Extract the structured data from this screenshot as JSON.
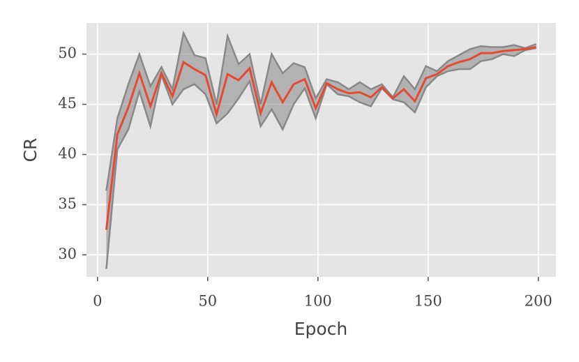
{
  "chart_data": {
    "type": "line",
    "x_label": "Epoch",
    "y_label": "CR",
    "x": [
      4,
      9,
      14,
      19,
      24,
      29,
      34,
      39,
      44,
      49,
      54,
      59,
      64,
      69,
      74,
      79,
      84,
      89,
      94,
      99,
      104,
      109,
      114,
      119,
      124,
      129,
      134,
      139,
      144,
      149,
      154,
      159,
      164,
      169,
      174,
      179,
      184,
      189,
      194,
      199
    ],
    "series": [
      {
        "color": "#e24a33",
        "band_color": "#888888",
        "values": [
          32.5,
          42.0,
          44.7,
          48.1,
          44.8,
          48.1,
          45.8,
          49.2,
          48.5,
          47.9,
          44.0,
          48.0,
          47.4,
          48.6,
          44.1,
          47.2,
          45.2,
          47.0,
          47.5,
          44.6,
          47.1,
          46.5,
          46.1,
          46.2,
          45.7,
          46.7,
          45.6,
          46.5,
          45.3,
          47.6,
          48.0,
          48.8,
          49.2,
          49.5,
          50.1,
          50.1,
          50.3,
          50.4,
          50.5,
          50.7
        ],
        "upper": [
          36.4,
          43.6,
          47.0,
          50.0,
          46.8,
          48.7,
          46.5,
          52.1,
          49.9,
          49.6,
          45.0,
          51.8,
          49.0,
          50.0,
          45.0,
          50.0,
          48.1,
          49.1,
          48.7,
          45.6,
          47.5,
          47.2,
          46.5,
          47.2,
          46.5,
          47.0,
          45.7,
          47.8,
          46.5,
          48.8,
          48.3,
          49.3,
          49.9,
          50.5,
          50.8,
          50.7,
          50.7,
          50.9,
          50.6,
          51.0
        ],
        "lower": [
          28.6,
          40.5,
          42.5,
          46.3,
          42.8,
          47.9,
          45.0,
          46.5,
          47.0,
          46.0,
          43.1,
          44.1,
          45.6,
          47.3,
          42.8,
          44.5,
          42.5,
          45.0,
          46.6,
          43.6,
          47.0,
          46.0,
          45.8,
          45.2,
          44.8,
          46.6,
          45.5,
          45.2,
          44.2,
          46.7,
          47.8,
          48.3,
          48.5,
          48.5,
          49.3,
          49.5,
          50.0,
          49.8,
          50.4,
          50.6
        ]
      }
    ],
    "xlim": [
      -5,
      208
    ],
    "ylim": [
      27.8,
      53.1
    ],
    "xticks": [
      0,
      50,
      100,
      150,
      200
    ],
    "yticks": [
      30,
      35,
      40,
      45,
      50
    ],
    "grid": true,
    "background": "#e5e5e5"
  }
}
